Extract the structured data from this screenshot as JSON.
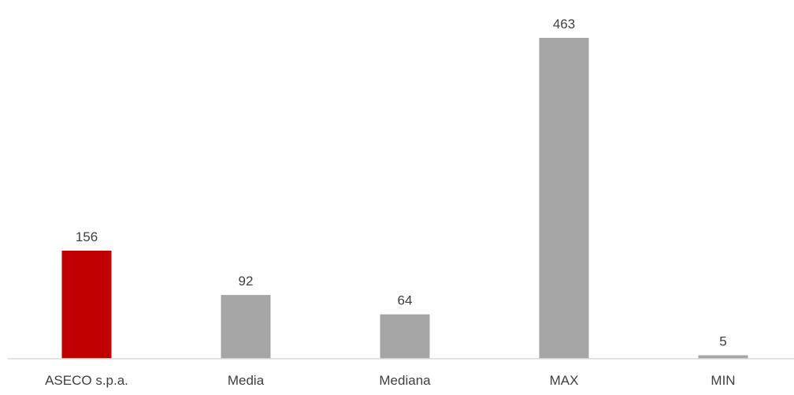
{
  "chart_data": {
    "type": "bar",
    "categories": [
      "ASECO s.p.a.",
      "Media",
      "Mediana",
      "MAX",
      "MIN"
    ],
    "values": [
      156,
      92,
      64,
      463,
      5
    ],
    "data_labels": [
      "156",
      "92",
      "64",
      "463",
      "5"
    ],
    "title": "",
    "xlabel": "",
    "ylabel": "",
    "ylim": [
      0,
      463
    ],
    "grid": false,
    "legend": "none",
    "colors": {
      "highlight": "#c00000",
      "default": "#a5a5a5",
      "axis": "#d9d9d9",
      "label": "#404040"
    },
    "bar_colors": [
      "#c00000",
      "#a5a5a5",
      "#a5a5a5",
      "#a5a5a5",
      "#a5a5a5"
    ]
  }
}
